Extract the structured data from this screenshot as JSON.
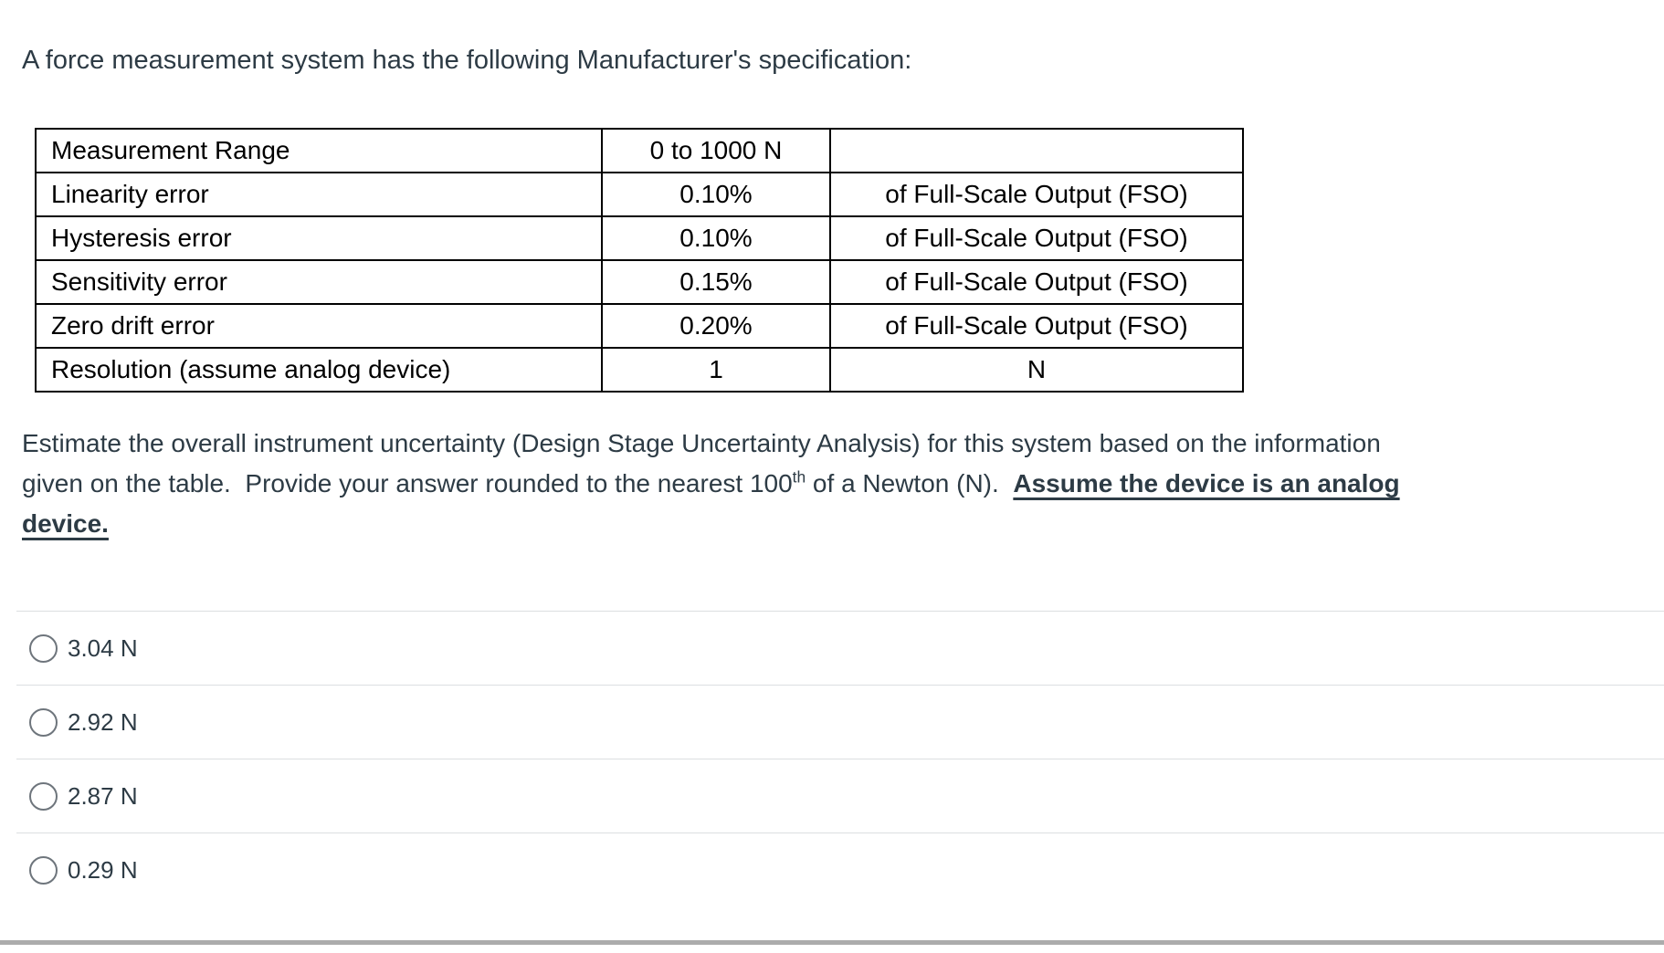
{
  "question": {
    "title": "A force measurement system has the following Manufacturer's specification:",
    "spec_table": {
      "rows": [
        {
          "label": "Measurement Range",
          "value": "0 to 1000 N",
          "unit": ""
        },
        {
          "label": "Linearity error",
          "value": "0.10%",
          "unit": "of Full-Scale Output (FSO)"
        },
        {
          "label": "Hysteresis error",
          "value": "0.10%",
          "unit": "of Full-Scale Output (FSO)"
        },
        {
          "label": "Sensitivity error",
          "value": "0.15%",
          "unit": "of Full-Scale Output (FSO)"
        },
        {
          "label": "Zero drift error",
          "value": "0.20%",
          "unit": "of Full-Scale Output (FSO)"
        },
        {
          "label": "Resolution (assume analog device)",
          "value": "1",
          "unit": "N"
        }
      ]
    },
    "body": {
      "line1": "Estimate the overall instrument uncertainty (Design Stage Uncertainty Analysis) for this system based on the information",
      "line2_pre": "given on the table.  Provide your answer rounded to the nearest 100",
      "line2_sup": "th",
      "line2_mid": " of a Newton (N).  ",
      "line2_emphasis": "Assume the device is an analog",
      "line3_emphasis": "device."
    }
  },
  "options": [
    {
      "label": "3.04 N"
    },
    {
      "label": "2.92 N"
    },
    {
      "label": "2.87 N"
    },
    {
      "label": "0.29 N"
    }
  ],
  "colors": {
    "text": "#2D3B45",
    "table_border": "#000000",
    "option_divider": "#dcdfe1",
    "bottom_bar": "#acacac",
    "radio_border": "#6e757c"
  }
}
